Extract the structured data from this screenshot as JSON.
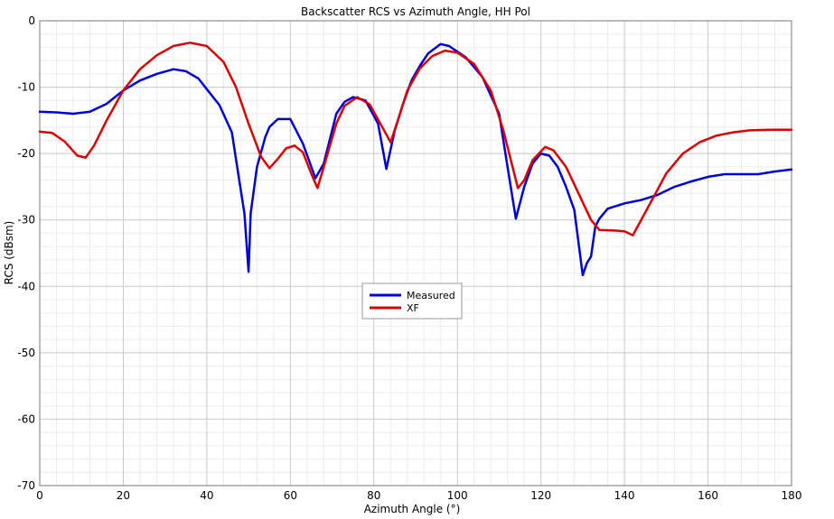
{
  "chart_data": {
    "type": "line",
    "title": "Backscatter RCS vs Azimuth Angle, HH Pol",
    "xlabel": "Azimuth Angle (°)",
    "ylabel": "RCS (dBsm)",
    "xlim": [
      0,
      180
    ],
    "ylim": [
      -70,
      0
    ],
    "x_ticks": [
      0,
      20,
      40,
      60,
      80,
      100,
      120,
      140,
      160,
      180
    ],
    "y_ticks": [
      0,
      -10,
      -20,
      -30,
      -40,
      -50,
      -60,
      -70
    ],
    "grid": true,
    "minor_grid": true,
    "legend_position": "center",
    "series": [
      {
        "name": "Measured",
        "color": "#0000dd",
        "points": [
          [
            0,
            -13.7
          ],
          [
            4,
            -13.8
          ],
          [
            8,
            -14.0
          ],
          [
            12,
            -13.7
          ],
          [
            16,
            -12.5
          ],
          [
            18,
            -11.5
          ],
          [
            20,
            -10.5
          ],
          [
            24,
            -9.0
          ],
          [
            28,
            -8.0
          ],
          [
            32,
            -7.3
          ],
          [
            35,
            -7.6
          ],
          [
            38,
            -8.7
          ],
          [
            40,
            -10.3
          ],
          [
            43,
            -12.7
          ],
          [
            46,
            -16.8
          ],
          [
            48,
            -25.0
          ],
          [
            49,
            -29.0
          ],
          [
            50,
            -37.8
          ],
          [
            50.5,
            -29.0
          ],
          [
            52,
            -22.0
          ],
          [
            54,
            -17.5
          ],
          [
            55,
            -16.0
          ],
          [
            57,
            -14.8
          ],
          [
            60,
            -14.8
          ],
          [
            63,
            -18.5
          ],
          [
            66,
            -23.7
          ],
          [
            68,
            -21.5
          ],
          [
            71,
            -14.0
          ],
          [
            73,
            -12.2
          ],
          [
            75,
            -11.5
          ],
          [
            78,
            -12.0
          ],
          [
            81,
            -15.5
          ],
          [
            83,
            -22.3
          ],
          [
            85,
            -16.5
          ],
          [
            87,
            -12.5
          ],
          [
            89,
            -9.0
          ],
          [
            91,
            -6.8
          ],
          [
            93,
            -4.9
          ],
          [
            96,
            -3.5
          ],
          [
            98,
            -3.8
          ],
          [
            102,
            -5.5
          ],
          [
            106,
            -8.5
          ],
          [
            110,
            -14.0
          ],
          [
            112,
            -22.0
          ],
          [
            114,
            -29.8
          ],
          [
            116,
            -25.0
          ],
          [
            118,
            -21.5
          ],
          [
            120,
            -20.0
          ],
          [
            122,
            -20.3
          ],
          [
            124,
            -22.0
          ],
          [
            126,
            -25.0
          ],
          [
            128,
            -28.5
          ],
          [
            130,
            -38.3
          ],
          [
            131,
            -36.5
          ],
          [
            132,
            -35.5
          ],
          [
            133,
            -31.0
          ],
          [
            134,
            -29.8
          ],
          [
            136,
            -28.3
          ],
          [
            140,
            -27.5
          ],
          [
            144,
            -27.0
          ],
          [
            148,
            -26.2
          ],
          [
            152,
            -25.0
          ],
          [
            156,
            -24.2
          ],
          [
            160,
            -23.5
          ],
          [
            164,
            -23.1
          ],
          [
            168,
            -23.1
          ],
          [
            172,
            -23.1
          ],
          [
            176,
            -22.7
          ],
          [
            180,
            -22.4
          ]
        ]
      },
      {
        "name": "XF",
        "color": "#dd0000",
        "points": [
          [
            0,
            -16.7
          ],
          [
            3,
            -16.9
          ],
          [
            6,
            -18.2
          ],
          [
            9,
            -20.3
          ],
          [
            11,
            -20.6
          ],
          [
            13,
            -18.8
          ],
          [
            16,
            -15.0
          ],
          [
            20,
            -10.5
          ],
          [
            24,
            -7.3
          ],
          [
            28,
            -5.2
          ],
          [
            32,
            -3.8
          ],
          [
            36,
            -3.3
          ],
          [
            40,
            -3.8
          ],
          [
            44,
            -6.2
          ],
          [
            47,
            -10.0
          ],
          [
            50,
            -15.5
          ],
          [
            53,
            -20.5
          ],
          [
            55,
            -22.2
          ],
          [
            57,
            -20.8
          ],
          [
            59,
            -19.2
          ],
          [
            61,
            -18.8
          ],
          [
            63,
            -19.8
          ],
          [
            65,
            -23.0
          ],
          [
            66.5,
            -25.2
          ],
          [
            68,
            -22.0
          ],
          [
            71,
            -15.5
          ],
          [
            73,
            -12.8
          ],
          [
            76,
            -11.5
          ],
          [
            79,
            -12.6
          ],
          [
            82,
            -16.0
          ],
          [
            84,
            -18.3
          ],
          [
            86,
            -14.5
          ],
          [
            88,
            -10.5
          ],
          [
            91,
            -7.2
          ],
          [
            94,
            -5.3
          ],
          [
            97,
            -4.5
          ],
          [
            100,
            -4.8
          ],
          [
            104,
            -6.5
          ],
          [
            108,
            -10.5
          ],
          [
            111,
            -16.5
          ],
          [
            113,
            -21.5
          ],
          [
            114.5,
            -25.2
          ],
          [
            116,
            -24.0
          ],
          [
            118,
            -21.0
          ],
          [
            121,
            -19.0
          ],
          [
            123,
            -19.5
          ],
          [
            126,
            -22.0
          ],
          [
            129,
            -26.0
          ],
          [
            132,
            -30.0
          ],
          [
            134,
            -31.5
          ],
          [
            138,
            -31.6
          ],
          [
            140,
            -31.7
          ],
          [
            142,
            -32.3
          ],
          [
            144,
            -30.0
          ],
          [
            147,
            -26.5
          ],
          [
            150,
            -23.0
          ],
          [
            154,
            -20.0
          ],
          [
            158,
            -18.3
          ],
          [
            162,
            -17.3
          ],
          [
            166,
            -16.8
          ],
          [
            170,
            -16.5
          ],
          [
            175,
            -16.4
          ],
          [
            180,
            -16.4
          ]
        ]
      }
    ]
  }
}
